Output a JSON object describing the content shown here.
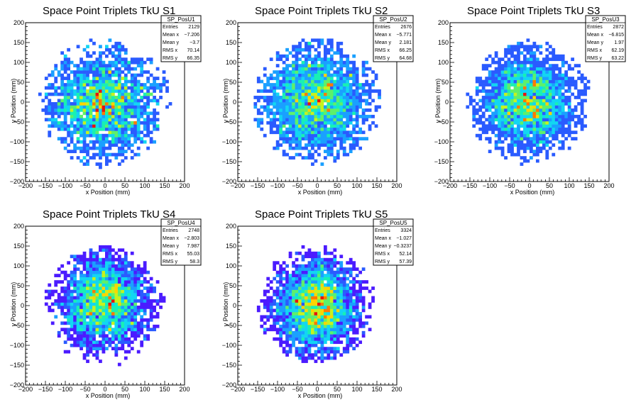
{
  "colors": {
    "frame": "#000000",
    "palette": [
      "#4b1bff",
      "#2a5bff",
      "#1aa0ff",
      "#12d6f2",
      "#18f0b4",
      "#5ef06a",
      "#c6f21e",
      "#ffd400",
      "#ff7a00",
      "#e8140c"
    ]
  },
  "chart_data": [
    {
      "type": "heatmap",
      "title": "Space Point Triplets TkU S1",
      "xlabel": "x Position (mm)",
      "ylabel": "y Position (mm)",
      "xlim": [
        -200,
        200
      ],
      "ylim": [
        -200,
        200
      ],
      "xticks": [
        -200,
        -150,
        -100,
        -50,
        0,
        50,
        100,
        150,
        200
      ],
      "yticks": [
        -200,
        -150,
        -100,
        -50,
        0,
        50,
        100,
        150,
        200
      ],
      "bin_width_mm": 8,
      "entries": 2129,
      "mean_x": -7.206,
      "mean_y": -3.7,
      "rms_x": 70.14,
      "rms_y": 66.35,
      "max_radius_mm": 165,
      "seed": 11,
      "stats": {
        "name": "SP_PosU1",
        "rows": [
          {
            "label": "Entries",
            "value": "2129"
          },
          {
            "label": "Mean x",
            "value": "−7.206"
          },
          {
            "label": "Mean y",
            "value": "−3.7"
          },
          {
            "label": "RMS x",
            "value": "70.14"
          },
          {
            "label": "RMS y",
            "value": "66.35"
          }
        ]
      }
    },
    {
      "type": "heatmap",
      "title": "Space Point Triplets TkU S2",
      "xlabel": "x Position (mm)",
      "ylabel": "y Position (mm)",
      "xlim": [
        -200,
        200
      ],
      "ylim": [
        -200,
        200
      ],
      "xticks": [
        -200,
        -150,
        -100,
        -50,
        0,
        50,
        100,
        150,
        200
      ],
      "yticks": [
        -200,
        -150,
        -100,
        -50,
        0,
        50,
        100,
        150,
        200
      ],
      "bin_width_mm": 8,
      "entries": 2676,
      "mean_x": -5.771,
      "mean_y": 2.181,
      "rms_x": 66.25,
      "rms_y": 64.68,
      "max_radius_mm": 160,
      "seed": 23,
      "stats": {
        "name": "SP_PosU2",
        "rows": [
          {
            "label": "Entries",
            "value": "2676"
          },
          {
            "label": "Mean x",
            "value": "−5.771"
          },
          {
            "label": "Mean y",
            "value": "2.181"
          },
          {
            "label": "RMS x",
            "value": "66.25"
          },
          {
            "label": "RMS y",
            "value": "64.68"
          }
        ]
      }
    },
    {
      "type": "heatmap",
      "title": "Space Point Triplets TkU S3",
      "xlabel": "x Position (mm)",
      "ylabel": "y Position (mm)",
      "xlim": [
        -200,
        200
      ],
      "ylim": [
        -200,
        200
      ],
      "xticks": [
        -200,
        -150,
        -100,
        -50,
        0,
        50,
        100,
        150,
        200
      ],
      "yticks": [
        -200,
        -150,
        -100,
        -50,
        0,
        50,
        100,
        150,
        200
      ],
      "bin_width_mm": 8,
      "entries": 2872,
      "mean_x": -6.815,
      "mean_y": 1.97,
      "rms_x": 62.19,
      "rms_y": 63.22,
      "max_radius_mm": 155,
      "seed": 37,
      "stats": {
        "name": "SP_PosU3",
        "rows": [
          {
            "label": "Entries",
            "value": "2872"
          },
          {
            "label": "Mean x",
            "value": "−6.815"
          },
          {
            "label": "Mean y",
            "value": "1.97"
          },
          {
            "label": "RMS x",
            "value": "62.19"
          },
          {
            "label": "RMS y",
            "value": "63.22"
          }
        ]
      }
    },
    {
      "type": "heatmap",
      "title": "Space Point Triplets TkU S4",
      "xlabel": "x Position (mm)",
      "ylabel": "y Position (mm)",
      "xlim": [
        -200,
        200
      ],
      "ylim": [
        -200,
        200
      ],
      "xticks": [
        -200,
        -150,
        -100,
        -50,
        0,
        50,
        100,
        150,
        200
      ],
      "yticks": [
        -200,
        -150,
        -100,
        -50,
        0,
        50,
        100,
        150,
        200
      ],
      "bin_width_mm": 8,
      "entries": 2748,
      "mean_x": -2.803,
      "mean_y": 7.987,
      "rms_x": 55.03,
      "rms_y": 58.3,
      "max_radius_mm": 150,
      "seed": 51,
      "stats": {
        "name": "SP_PosU4",
        "rows": [
          {
            "label": "Entries",
            "value": "2748"
          },
          {
            "label": "Mean x",
            "value": "−2.803"
          },
          {
            "label": "Mean y",
            "value": "7.987"
          },
          {
            "label": "RMS x",
            "value": "55.03"
          },
          {
            "label": "RMS y",
            "value": "58.3"
          }
        ]
      }
    },
    {
      "type": "heatmap",
      "title": "Space Point Triplets TkU S5",
      "xlabel": "x Position (mm)",
      "ylabel": "y Position (mm)",
      "xlim": [
        -200,
        200
      ],
      "ylim": [
        -200,
        200
      ],
      "xticks": [
        -200,
        -150,
        -100,
        -50,
        0,
        50,
        100,
        150,
        200
      ],
      "yticks": [
        -200,
        -150,
        -100,
        -50,
        0,
        50,
        100,
        150,
        200
      ],
      "bin_width_mm": 8,
      "entries": 3324,
      "mean_x": -1.027,
      "mean_y": -0.3237,
      "rms_x": 52.14,
      "rms_y": 57.39,
      "max_radius_mm": 150,
      "seed": 67,
      "stats": {
        "name": "SP_PosU5",
        "rows": [
          {
            "label": "Entries",
            "value": "3324"
          },
          {
            "label": "Mean x",
            "value": "−1.027"
          },
          {
            "label": "Mean y",
            "value": "−0.3237"
          },
          {
            "label": "RMS x",
            "value": "52.14"
          },
          {
            "label": "RMS y",
            "value": "57.39"
          }
        ]
      }
    }
  ]
}
